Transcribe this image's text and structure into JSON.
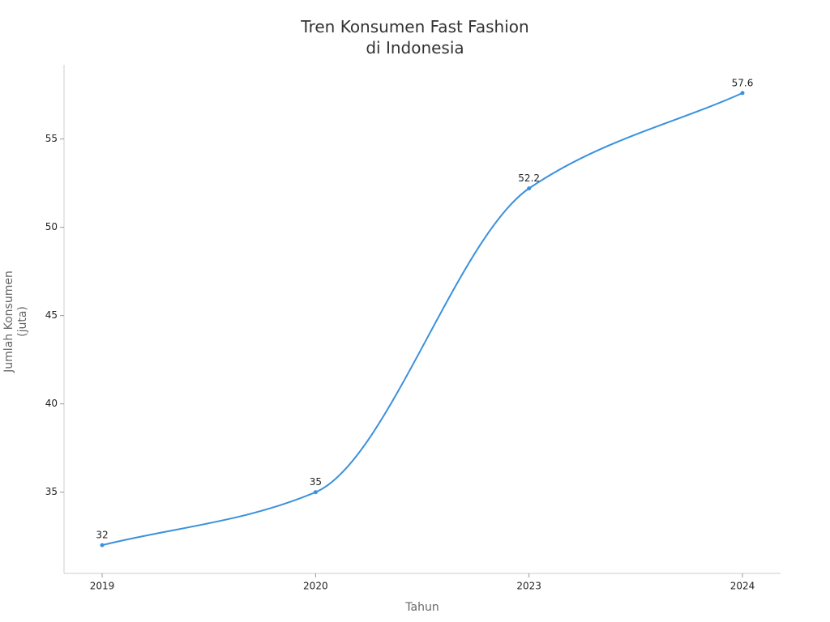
{
  "chart_data": {
    "type": "line",
    "title": "Tren Konsumen Fast Fashion di Indonesia",
    "x_label": "Tahun",
    "y_label": "Jumlah Konsumen (juta)",
    "categories": [
      "2019",
      "2020",
      "2023",
      "2024"
    ],
    "series": [
      {
        "name": "Jumlah Konsumen",
        "color": "#3a91dd",
        "values": [
          32,
          35,
          52.2,
          57.6
        ]
      }
    ],
    "ylim": [
      30.4,
      59.2
    ],
    "yticks": [
      35,
      40,
      45,
      50,
      55
    ]
  }
}
